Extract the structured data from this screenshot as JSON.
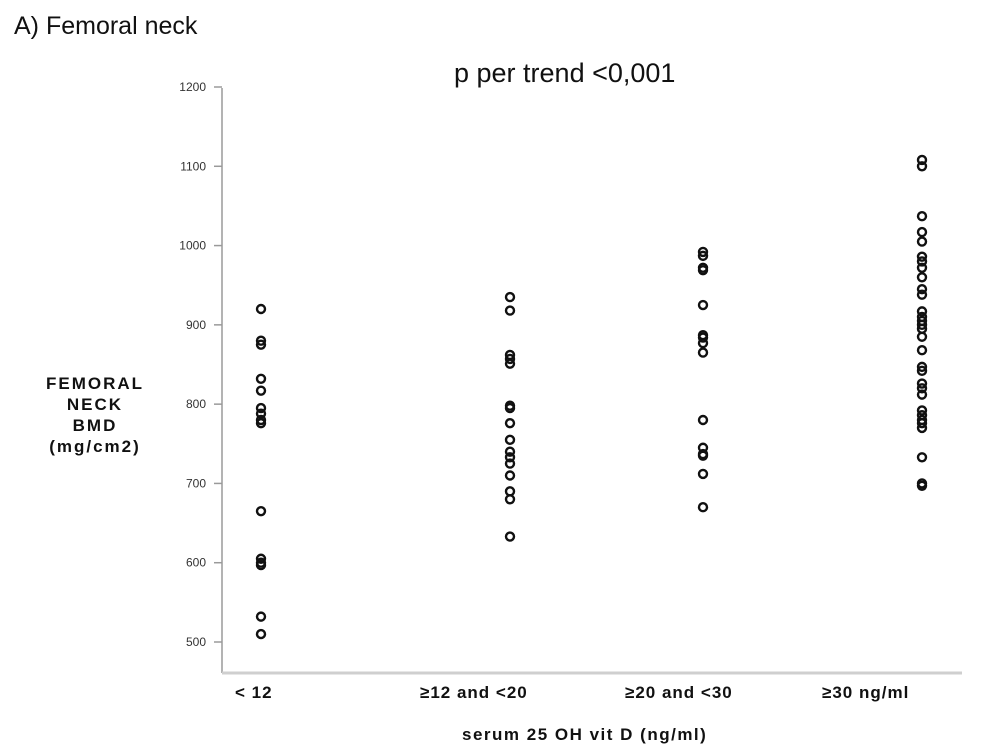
{
  "panel_title": "A) Femoral neck",
  "chart_data": {
    "type": "scatter",
    "title": "",
    "annotation": "p per trend <0,001",
    "ylabel_lines": [
      "FEMORAL",
      "NECK",
      "BMD",
      "(mg/cm2)"
    ],
    "xlabel": "serum 25 OH vit D (ng/ml)",
    "categories": [
      "< 12",
      "≥12 and <20",
      "≥20 and <30",
      "≥30 ng/ml"
    ],
    "ylim": [
      470,
      1230
    ],
    "yticks": [
      500,
      600,
      700,
      800,
      900,
      1000,
      1100,
      1200
    ],
    "grid": false,
    "marker_color": "#111111",
    "series": [
      {
        "category": "< 12",
        "values": [
          920,
          880,
          875,
          832,
          817,
          795,
          788,
          780,
          776,
          665,
          605,
          600,
          597,
          532,
          510
        ]
      },
      {
        "category": "≥12 and <20",
        "values": [
          935,
          918,
          862,
          857,
          851,
          798,
          795,
          776,
          755,
          740,
          733,
          725,
          710,
          690,
          680,
          633
        ]
      },
      {
        "category": "≥20 and <30",
        "values": [
          992,
          987,
          972,
          969,
          925,
          887,
          884,
          877,
          865,
          780,
          745,
          737,
          735,
          712,
          670
        ]
      },
      {
        "category": "≥30 ng/ml",
        "values": [
          1108,
          1100,
          1037,
          1017,
          1005,
          986,
          980,
          972,
          960,
          945,
          938,
          917,
          910,
          905,
          900,
          895,
          885,
          868,
          847,
          842,
          826,
          820,
          812,
          792,
          786,
          780,
          776,
          770,
          733,
          700,
          697
        ]
      }
    ]
  }
}
